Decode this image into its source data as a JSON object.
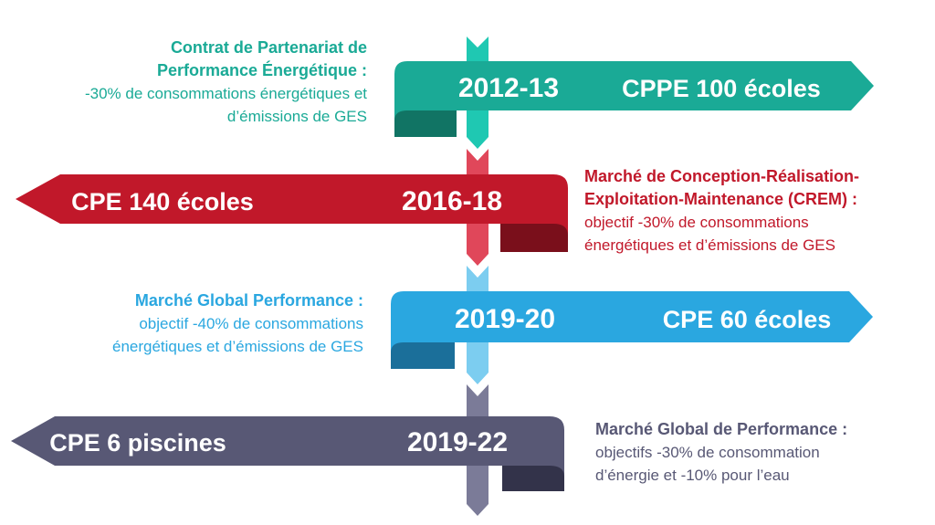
{
  "milestones": [
    {
      "period": "2012-13",
      "program": "CPPE 100 écoles",
      "heading_line1": "Contrat de Partenariat de",
      "heading_line2": "Performance Énergétique :",
      "body_line1": "-30% de consommations énergétiques et",
      "body_line2": "d’émissions de GES",
      "color": "#1aaa96",
      "dark_color": "#117464"
    },
    {
      "period": "2016-18",
      "program": "CPE 140 écoles",
      "heading_line1": "Marché de Conception-Réalisation-",
      "heading_line2": "Exploitation-Maintenance (CREM) :",
      "body_line1": "objectif -30% de consommations",
      "body_line2": "énergétiques et d’émissions de GES",
      "color": "#c1182a",
      "dark_color": "#7a0f1b"
    },
    {
      "period": "2019-20",
      "program": "CPE 60 écoles",
      "heading_line1": "Marché Global Performance :",
      "body_line1": "objectif -40% de consommations",
      "body_line2": "énergétiques et d’émissions de GES",
      "color": "#2aa7e0",
      "dark_color": "#1b6f9a"
    },
    {
      "period": "2019-22",
      "program": "CPE 6 piscines",
      "heading_line1": "Marché Global de Performance :",
      "body_line1": "objectifs -30% de consommation",
      "body_line2": "d’énergie et -10% pour l’eau",
      "color": "#585875",
      "dark_color": "#33334a"
    }
  ]
}
